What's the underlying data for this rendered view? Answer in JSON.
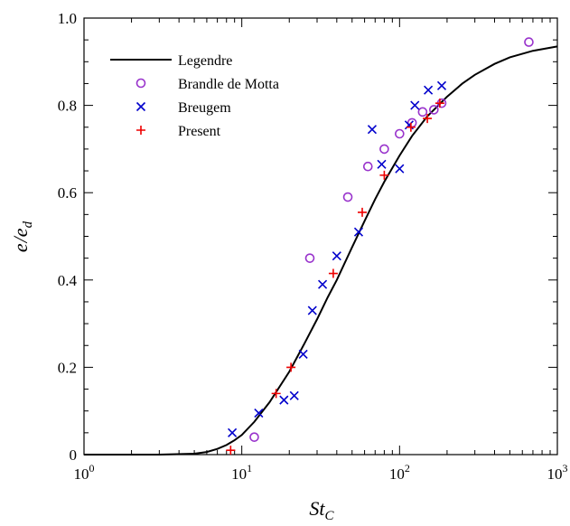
{
  "chart_data": {
    "type": "scatter",
    "xscale": "log",
    "xlim": [
      1,
      1000
    ],
    "ylim": [
      0,
      1.0
    ],
    "x_ticks": [
      {
        "value": 1,
        "base": "10",
        "exp": "0"
      },
      {
        "value": 10,
        "base": "10",
        "exp": "1"
      },
      {
        "value": 100,
        "base": "10",
        "exp": "2"
      },
      {
        "value": 1000,
        "base": "10",
        "exp": "3"
      }
    ],
    "y_ticks": [
      {
        "value": 0,
        "label": "0"
      },
      {
        "value": 0.2,
        "label": "0.2"
      },
      {
        "value": 0.4,
        "label": "0.4"
      },
      {
        "value": 0.6,
        "label": "0.6"
      },
      {
        "value": 0.8,
        "label": "0.8"
      },
      {
        "value": 1.0,
        "label": "1.0"
      }
    ],
    "xlabel": {
      "main": "St",
      "sub": "C"
    },
    "ylabel": {
      "num": "e",
      "den": "e",
      "den_sub": "d"
    },
    "legend_position": "top-left",
    "grid": false,
    "series": [
      {
        "name": "Legendre",
        "kind": "line",
        "color": "#000000",
        "x": [
          1,
          3,
          5,
          6,
          7,
          8,
          9,
          10,
          12,
          15,
          20,
          25,
          30,
          35,
          40,
          50,
          60,
          70,
          80,
          100,
          120,
          150,
          200,
          250,
          300,
          400,
          500,
          700,
          1000
        ],
        "y": [
          0,
          0,
          0.002,
          0.006,
          0.013,
          0.022,
          0.033,
          0.045,
          0.075,
          0.12,
          0.19,
          0.255,
          0.31,
          0.36,
          0.4,
          0.475,
          0.535,
          0.585,
          0.625,
          0.685,
          0.73,
          0.775,
          0.82,
          0.85,
          0.87,
          0.895,
          0.91,
          0.925,
          0.935
        ]
      },
      {
        "name": "Brandle de Motta",
        "kind": "marker",
        "marker": "circle",
        "color": "#9933cc",
        "x": [
          12,
          27,
          47,
          63,
          80,
          100,
          120,
          140,
          165,
          185,
          660
        ],
        "y": [
          0.04,
          0.45,
          0.59,
          0.66,
          0.7,
          0.735,
          0.76,
          0.785,
          0.79,
          0.805,
          0.945
        ]
      },
      {
        "name": "Breugem",
        "kind": "marker",
        "marker": "x",
        "color": "#0000cc",
        "x": [
          8.7,
          12.8,
          18.5,
          21.5,
          24.5,
          28,
          32.5,
          40,
          55,
          67,
          77,
          100,
          115,
          125,
          152,
          185
        ],
        "y": [
          0.05,
          0.095,
          0.125,
          0.135,
          0.23,
          0.33,
          0.39,
          0.455,
          0.51,
          0.745,
          0.665,
          0.655,
          0.755,
          0.8,
          0.835,
          0.845
        ]
      },
      {
        "name": "Present",
        "kind": "marker",
        "marker": "plus",
        "color": "#ee0000",
        "x": [
          8.5,
          16.5,
          20.5,
          38,
          58,
          80,
          118,
          150,
          180
        ],
        "y": [
          0.01,
          0.14,
          0.2,
          0.415,
          0.555,
          0.64,
          0.75,
          0.77,
          0.805
        ]
      }
    ]
  }
}
